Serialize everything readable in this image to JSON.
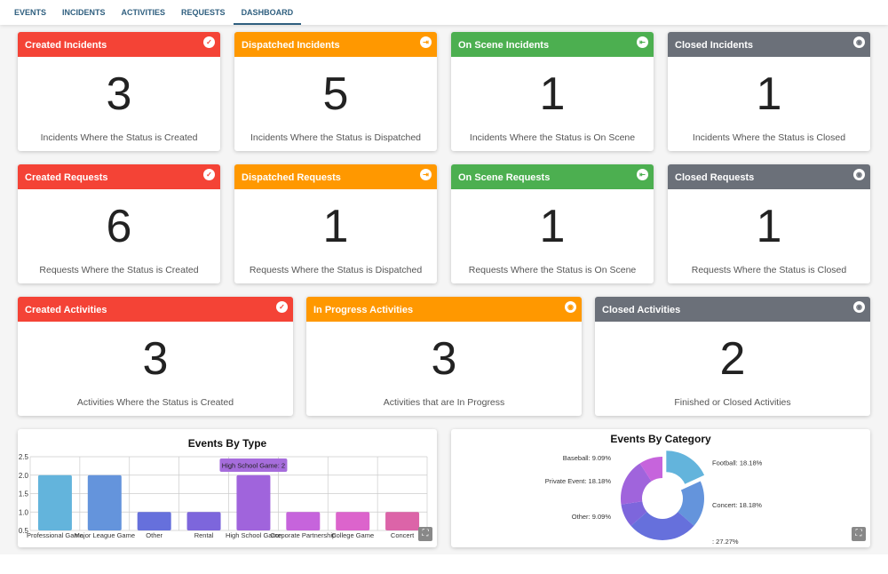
{
  "nav": {
    "tabs": [
      "EVENTS",
      "INCIDENTS",
      "ACTIVITIES",
      "REQUESTS",
      "DASHBOARD"
    ],
    "active": "DASHBOARD"
  },
  "colors": {
    "created": "#f44336",
    "dispatched": "#ff9800",
    "onscene": "#4caf50",
    "closed": "#6b7079"
  },
  "cards": [
    {
      "title": "Created Incidents",
      "value": "3",
      "subtitle": "Incidents Where the Status is Created",
      "status": "created",
      "icon": "check-icon"
    },
    {
      "title": "Dispatched Incidents",
      "value": "5",
      "subtitle": "Incidents Where the Status is Dispatched",
      "status": "dispatched",
      "icon": "logout-icon"
    },
    {
      "title": "On Scene Incidents",
      "value": "1",
      "subtitle": "Incidents Where the Status is On Scene",
      "status": "onscene",
      "icon": "login-icon"
    },
    {
      "title": "Closed Incidents",
      "value": "1",
      "subtitle": "Incidents Where the Status is Closed",
      "status": "closed",
      "icon": "stop-circle-icon"
    },
    {
      "title": "Created Requests",
      "value": "6",
      "subtitle": "Requests Where the Status is Created",
      "status": "created",
      "icon": "check-icon"
    },
    {
      "title": "Dispatched Requests",
      "value": "1",
      "subtitle": "Requests Where the Status is Dispatched",
      "status": "dispatched",
      "icon": "logout-icon"
    },
    {
      "title": "On Scene Requests",
      "value": "1",
      "subtitle": "Requests Where the Status is On Scene",
      "status": "onscene",
      "icon": "login-icon"
    },
    {
      "title": "Closed Requests",
      "value": "1",
      "subtitle": "Requests Where the Status is Closed",
      "status": "closed",
      "icon": "stop-circle-icon"
    },
    {
      "title": "Created Activities",
      "value": "3",
      "subtitle": "Activities Where the Status is Created",
      "status": "created",
      "icon": "check-icon"
    },
    {
      "title": "In Progress Activities",
      "value": "3",
      "subtitle": "Activities that are In Progress",
      "status": "dispatched",
      "icon": "stop-circle-icon"
    },
    {
      "title": "Closed Activities",
      "value": "2",
      "subtitle": "Finished or Closed Activities",
      "status": "closed",
      "icon": "stop-circle-icon"
    }
  ],
  "chart_data": [
    {
      "type": "bar",
      "title": "Events By Type",
      "categories": [
        "Professional Game",
        "Major League Game",
        "Other",
        "Rental",
        "High School Game",
        "Corporate Partnership",
        "College Game",
        "Concert"
      ],
      "values": [
        2,
        2,
        1,
        1,
        2,
        1,
        1,
        1
      ],
      "colors": [
        "#63b4dc",
        "#6494dc",
        "#6670dc",
        "#7d66dc",
        "#a064dc",
        "#c664dc",
        "#dc64cc",
        "#dc64a8"
      ],
      "ylim": [
        0.5,
        2.5
      ],
      "yticks": [
        "0.5",
        "1.0",
        "1.5",
        "2.0",
        "2.5"
      ],
      "grid": true,
      "tooltip": "High School Game: 2"
    },
    {
      "type": "pie",
      "title": "Events By Category",
      "labels": [
        "Football",
        "Concert",
        "",
        "Other",
        "Private Event",
        "Baseball"
      ],
      "values": [
        18.18,
        18.18,
        27.27,
        9.09,
        18.18,
        9.09
      ],
      "display": [
        "Football: 18.18%",
        "Concert: 18.18%",
        ": 27.27%",
        "Other: 9.09%",
        "Private Event: 18.18%",
        "Baseball: 9.09%"
      ],
      "colors": [
        "#63b4dc",
        "#6494dc",
        "#6670dc",
        "#7d66dc",
        "#a064dc",
        "#c664dc"
      ],
      "exploded": "Football"
    }
  ]
}
